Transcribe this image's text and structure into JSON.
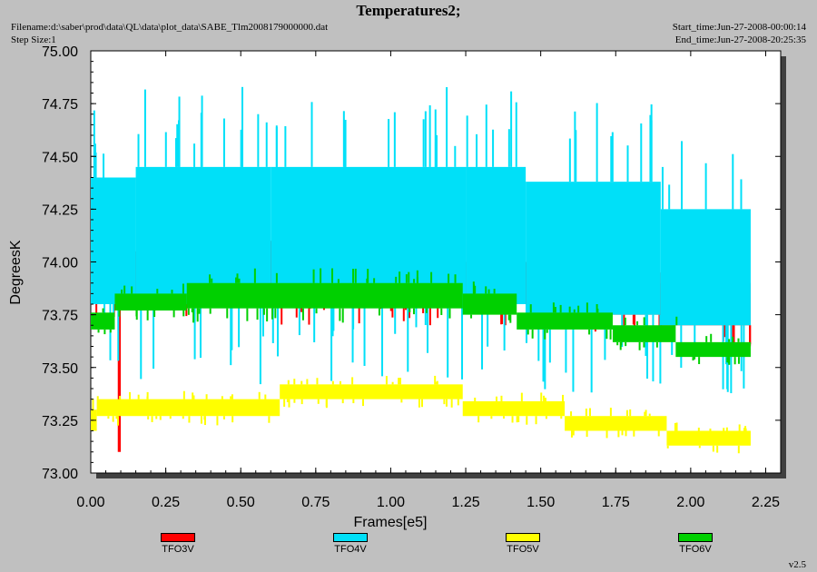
{
  "header": {
    "filename": "Filename:d:\\saber\\prod\\data\\QL\\data\\plot_data\\SABE_Tlm2008179000000.dat",
    "step_size": "Step Size:1",
    "start_time": "Start_time:Jun-27-2008-00:00:14",
    "end_time": "End_time:Jun-27-2008-20:25:35",
    "version": "v2.5"
  },
  "chart_data": {
    "type": "line",
    "title": "Temperatures2;",
    "xlabel": "Frames[e5]",
    "ylabel": "DegreesK",
    "xlim": [
      0,
      2.3
    ],
    "ylim": [
      73.0,
      75.0
    ],
    "xticks": [
      "0.00",
      "0.25",
      "0.50",
      "0.75",
      "1.00",
      "1.25",
      "1.50",
      "1.75",
      "2.00",
      "2.25"
    ],
    "yticks": [
      "73.00",
      "73.25",
      "73.50",
      "73.75",
      "74.00",
      "74.25",
      "74.50",
      "74.75",
      "75.00"
    ],
    "grid": false,
    "legend_position": "bottom",
    "series": [
      {
        "name": "TFO3V",
        "color": "#ff0000",
        "segments": [
          {
            "x0": 0.0,
            "x1": 0.09,
            "low": 73.8,
            "high": 74.0
          },
          {
            "x0": 0.09,
            "x1": 0.1,
            "low": 73.1,
            "high": 74.0
          },
          {
            "x0": 0.1,
            "x1": 0.55,
            "low": 73.85,
            "high": 74.05
          },
          {
            "x0": 0.55,
            "x1": 1.25,
            "low": 73.85,
            "high": 74.1
          },
          {
            "x0": 1.25,
            "x1": 1.65,
            "low": 73.8,
            "high": 74.0
          },
          {
            "x0": 1.65,
            "x1": 1.9,
            "low": 73.75,
            "high": 73.95
          },
          {
            "x0": 1.9,
            "x1": 2.2,
            "low": 73.7,
            "high": 73.9
          }
        ]
      },
      {
        "name": "TFO4V",
        "color": "#00e0f8",
        "segments": [
          {
            "x0": 0.0,
            "x1": 0.15,
            "low": 73.8,
            "high": 74.4
          },
          {
            "x0": 0.15,
            "x1": 0.6,
            "low": 73.8,
            "high": 74.45
          },
          {
            "x0": 0.6,
            "x1": 1.25,
            "low": 73.8,
            "high": 74.45
          },
          {
            "x0": 1.25,
            "x1": 1.45,
            "low": 73.8,
            "high": 74.45
          },
          {
            "x0": 1.45,
            "x1": 1.9,
            "low": 73.75,
            "high": 74.38
          },
          {
            "x0": 1.9,
            "x1": 2.2,
            "low": 73.7,
            "high": 74.25
          }
        ]
      },
      {
        "name": "TFO5V",
        "color": "#ffff00",
        "segments": [
          {
            "x0": 0.0,
            "x1": 0.02,
            "low": 73.2,
            "high": 73.3
          },
          {
            "x0": 0.02,
            "x1": 0.63,
            "low": 73.27,
            "high": 73.35
          },
          {
            "x0": 0.63,
            "x1": 1.24,
            "low": 73.35,
            "high": 73.42
          },
          {
            "x0": 1.24,
            "x1": 1.58,
            "low": 73.27,
            "high": 73.34
          },
          {
            "x0": 1.58,
            "x1": 1.92,
            "low": 73.2,
            "high": 73.27
          },
          {
            "x0": 1.92,
            "x1": 2.2,
            "low": 73.13,
            "high": 73.2
          }
        ]
      },
      {
        "name": "TFO6V",
        "color": "#00d000",
        "segments": [
          {
            "x0": 0.0,
            "x1": 0.08,
            "low": 73.68,
            "high": 73.76
          },
          {
            "x0": 0.08,
            "x1": 0.32,
            "low": 73.77,
            "high": 73.85
          },
          {
            "x0": 0.32,
            "x1": 1.24,
            "low": 73.78,
            "high": 73.9
          },
          {
            "x0": 1.24,
            "x1": 1.42,
            "low": 73.75,
            "high": 73.85
          },
          {
            "x0": 1.42,
            "x1": 1.74,
            "low": 73.68,
            "high": 73.76
          },
          {
            "x0": 1.74,
            "x1": 1.95,
            "low": 73.62,
            "high": 73.7
          },
          {
            "x0": 1.95,
            "x1": 2.2,
            "low": 73.55,
            "high": 73.62
          }
        ]
      }
    ]
  }
}
